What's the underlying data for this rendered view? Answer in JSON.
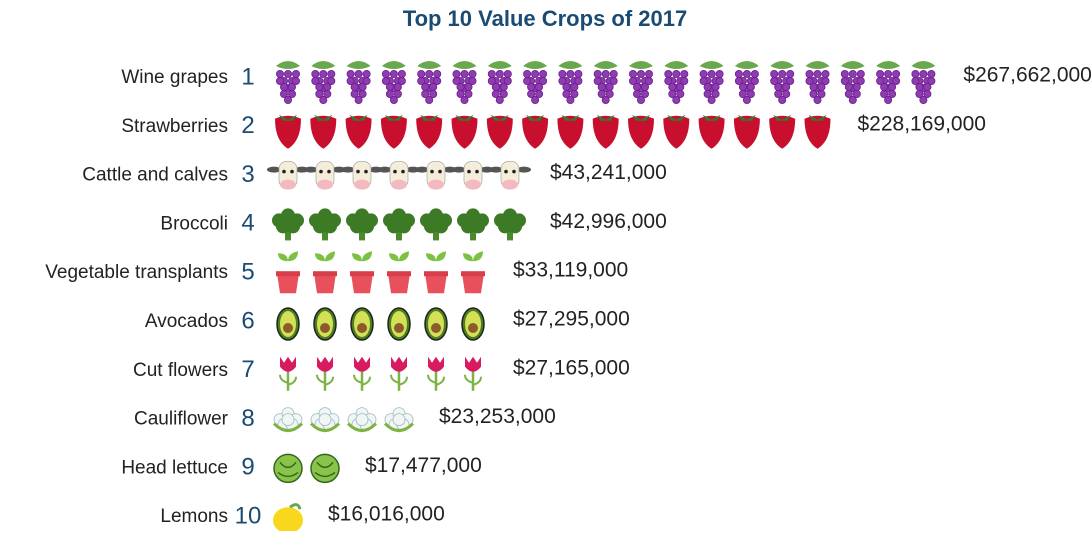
{
  "chart_data": {
    "type": "pictograph",
    "title": "Top 10 Value Crops of 2017",
    "categories": [
      "Wine grapes",
      "Strawberries",
      "Cattle and calves",
      "Broccoli",
      "Vegetable transplants",
      "Avocados",
      "Cut flowers",
      "Cauliflower",
      "Head lettuce",
      "Lemons"
    ],
    "ranks": [
      1,
      2,
      3,
      4,
      5,
      6,
      7,
      8,
      9,
      10
    ],
    "values": [
      267662000,
      228169000,
      43241000,
      42996000,
      33119000,
      27295000,
      27165000,
      23253000,
      17477000,
      16016000
    ],
    "value_labels": [
      "$267,662,000",
      "$228,169,000",
      "$43,241,000",
      "$42,996,000",
      "$33,119,000",
      "$27,295,000",
      "$27,165,000",
      "$23,253,000",
      "$17,477,000",
      "$16,016,000"
    ],
    "icon_counts": [
      19,
      16,
      7,
      7,
      6,
      6,
      6,
      4,
      2,
      1
    ]
  }
}
